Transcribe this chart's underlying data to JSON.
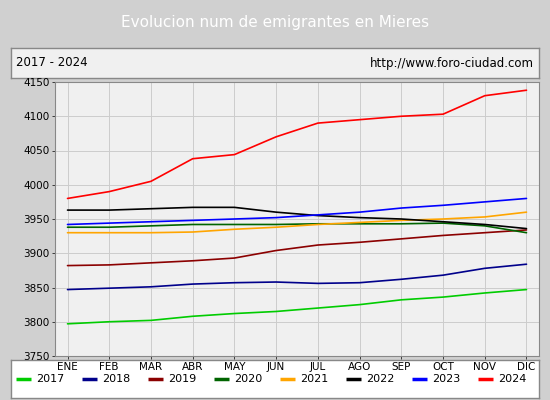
{
  "title": "Evolucion num de emigrantes en Mieres",
  "subtitle_left": "2017 - 2024",
  "subtitle_right": "http://www.foro-ciudad.com",
  "x_labels": [
    "ENE",
    "FEB",
    "MAR",
    "ABR",
    "MAY",
    "JUN",
    "JUL",
    "AGO",
    "SEP",
    "OCT",
    "NOV",
    "DIC"
  ],
  "ylim": [
    3750,
    4150
  ],
  "yticks": [
    3750,
    3800,
    3850,
    3900,
    3950,
    4000,
    4050,
    4100,
    4150
  ],
  "series": {
    "2017": {
      "color": "#00cc00",
      "data": [
        3797,
        3800,
        3802,
        3808,
        3812,
        3815,
        3820,
        3825,
        3832,
        3836,
        3842,
        3847
      ]
    },
    "2018": {
      "color": "#00008b",
      "data": [
        3847,
        3849,
        3851,
        3855,
        3857,
        3858,
        3856,
        3857,
        3862,
        3868,
        3878,
        3884
      ]
    },
    "2019": {
      "color": "#8b0000",
      "data": [
        3882,
        3883,
        3886,
        3889,
        3893,
        3904,
        3912,
        3916,
        3921,
        3926,
        3930,
        3934
      ]
    },
    "2020": {
      "color": "#006400",
      "data": [
        3938,
        3938,
        3940,
        3942,
        3942,
        3942,
        3943,
        3943,
        3943,
        3944,
        3940,
        3930
      ]
    },
    "2021": {
      "color": "#ffa500",
      "data": [
        3930,
        3930,
        3930,
        3931,
        3935,
        3938,
        3942,
        3945,
        3948,
        3950,
        3953,
        3960
      ]
    },
    "2022": {
      "color": "#000000",
      "data": [
        3963,
        3963,
        3965,
        3967,
        3967,
        3960,
        3955,
        3952,
        3950,
        3946,
        3942,
        3936
      ]
    },
    "2023": {
      "color": "#0000ff",
      "data": [
        3942,
        3944,
        3946,
        3948,
        3950,
        3952,
        3956,
        3960,
        3966,
        3970,
        3975,
        3980
      ]
    },
    "2024": {
      "color": "#ff0000",
      "data": [
        3980,
        3990,
        4005,
        4038,
        4044,
        4070,
        4090,
        4095,
        4100,
        4103,
        4130,
        4138
      ]
    }
  },
  "title_bg": "#5b8dd9",
  "title_color": "#ffffff",
  "subtitle_bg": "#f0f0f0",
  "plot_bg": "#f0f0f0",
  "grid_color": "#cccccc",
  "legend_bg": "#ffffff",
  "legend_border": "#aaaaaa",
  "fig_bg": "#d0d0d0"
}
